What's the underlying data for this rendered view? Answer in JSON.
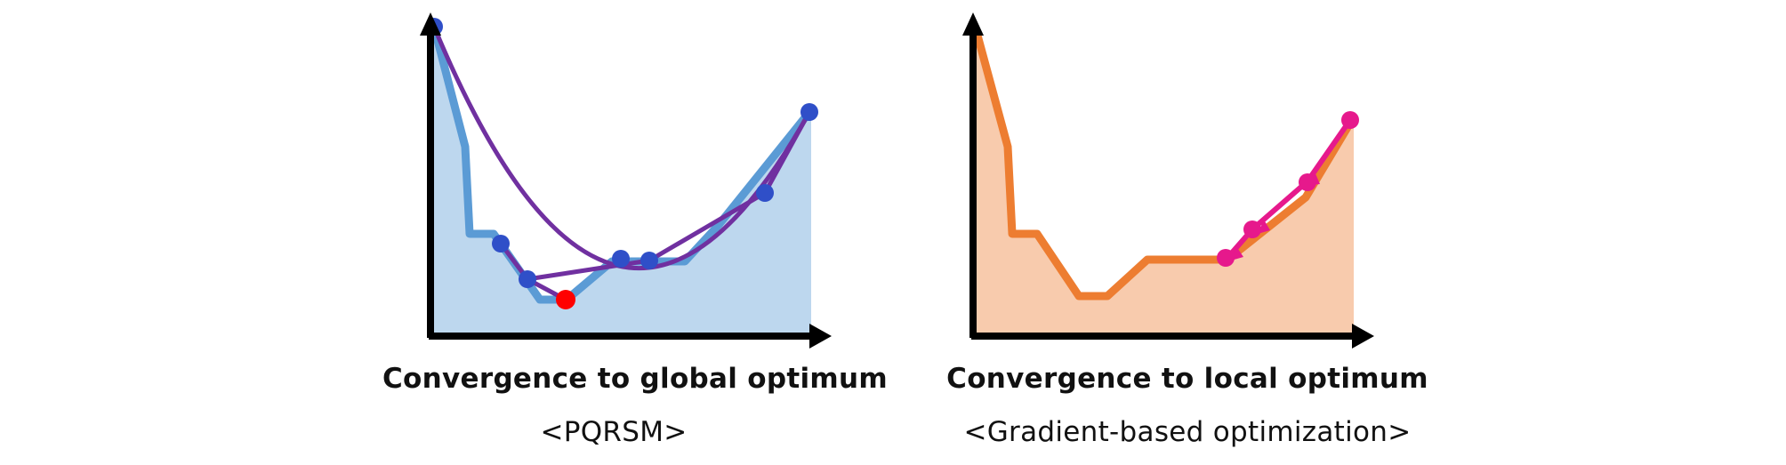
{
  "panels": [
    {
      "id": "left",
      "caption": "Convergence to global optimum",
      "subcaption": "<PQRSM>",
      "colors": {
        "fill": "#bdd7ee",
        "curve": "#5b9bd5",
        "surrogate": "#7030a0",
        "samples": "#2f4fc8",
        "optimum": "#ff0000"
      }
    },
    {
      "id": "right",
      "caption": "Convergence to local optimum",
      "subcaption": "<Gradient-based optimization>",
      "colors": {
        "fill": "#f8cbad",
        "curve": "#ed7d31",
        "path": "#e6198c"
      }
    }
  ],
  "icons": [
    "axis-arrow-icon"
  ]
}
